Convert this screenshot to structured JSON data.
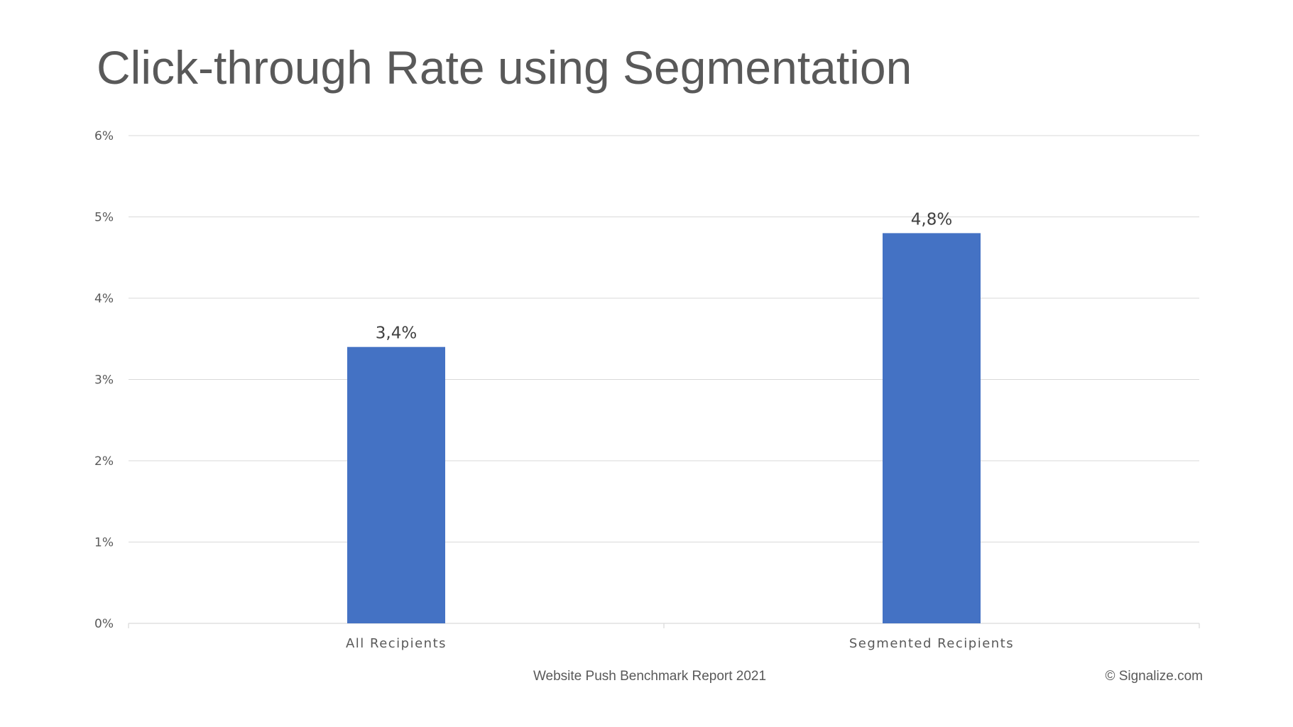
{
  "slide": {
    "title": "Click-through Rate using Segmentation",
    "footer_left": "Website Push Benchmark Report 2021",
    "footer_right": "© Signalize.com"
  },
  "chart_data": {
    "type": "bar",
    "title": "",
    "xlabel": "",
    "ylabel": "",
    "categories": [
      "All Recipients",
      "Segmented Recipients"
    ],
    "values": [
      3.4,
      4.8
    ],
    "data_labels": [
      "3,4%",
      "4,8%"
    ],
    "ylim": [
      0,
      6
    ],
    "y_ticks": [
      0,
      1,
      2,
      3,
      4,
      5,
      6
    ],
    "y_tick_labels": [
      "0%",
      "1%",
      "2%",
      "3%",
      "4%",
      "5%",
      "6%"
    ],
    "grid": true,
    "legend": "none",
    "colors": {
      "bar": "#4472C4",
      "grid": "#D9D9D9",
      "axis_text": "#595959",
      "data_label": "#404040"
    }
  }
}
